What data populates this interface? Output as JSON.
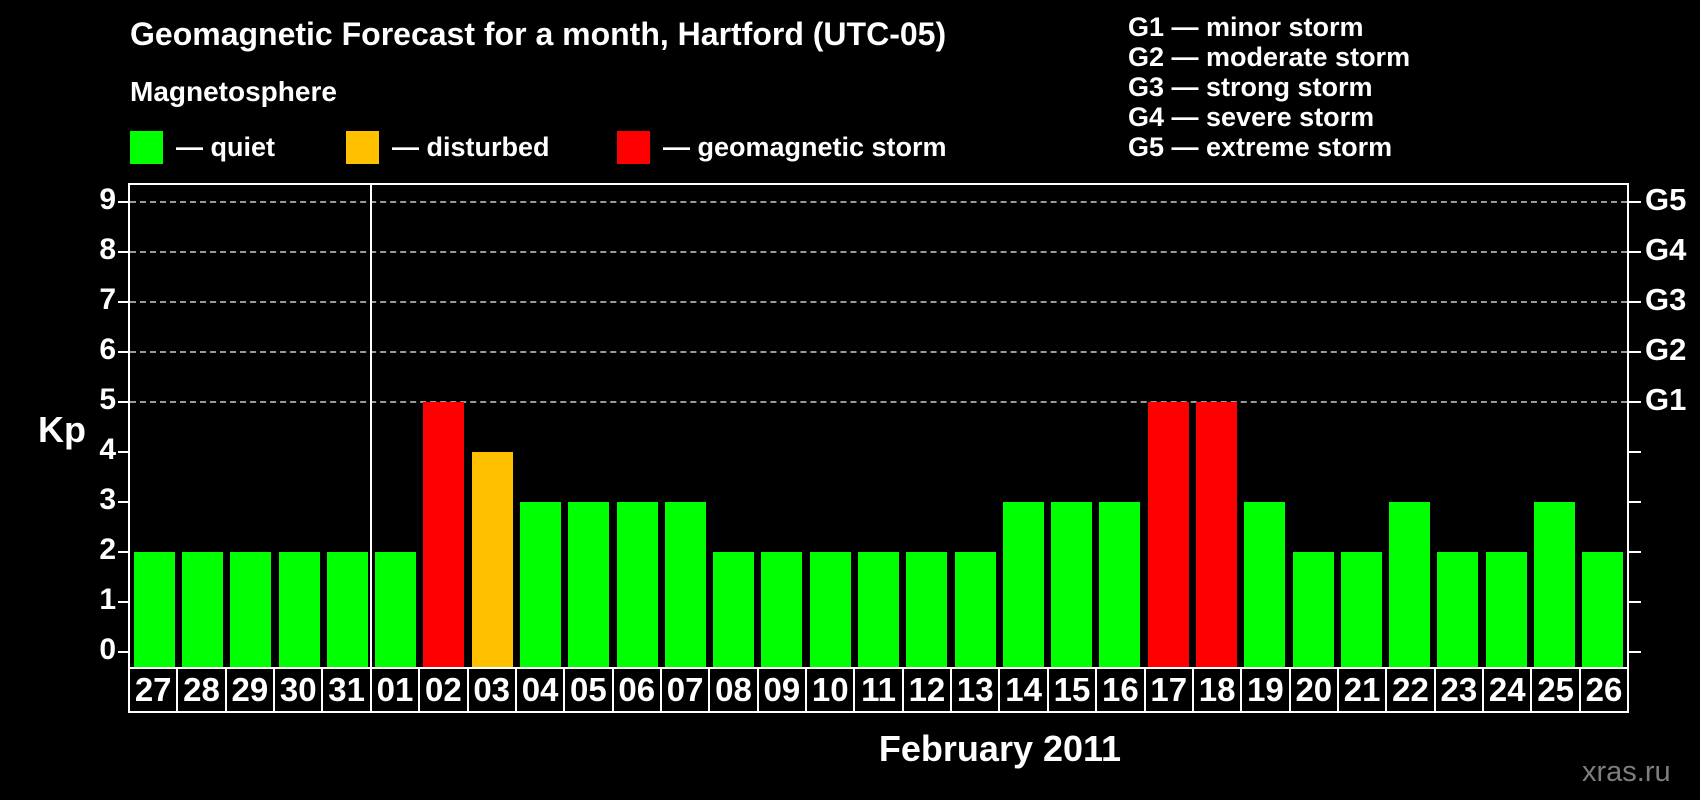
{
  "header": {
    "title": "Geomagnetic Forecast for a month, Hartford (UTC-05)"
  },
  "legend": {
    "title": "Magnetosphere",
    "items": [
      {
        "key": "quiet",
        "label": "— quiet"
      },
      {
        "key": "disturbed",
        "label": "— disturbed"
      },
      {
        "key": "storm",
        "label": "— geomagnetic storm"
      }
    ]
  },
  "g_scale": {
    "items": [
      {
        "text": "G1 — minor storm"
      },
      {
        "text": "G2 — moderate storm"
      },
      {
        "text": "G3 — strong storm"
      },
      {
        "text": "G4 — severe storm"
      },
      {
        "text": "G5 — extreme storm"
      }
    ]
  },
  "axes": {
    "y_label": "Kp",
    "x_label": "February 2011",
    "y_ticks": [
      0,
      1,
      2,
      3,
      4,
      5,
      6,
      7,
      8,
      9
    ],
    "right_labels": [
      {
        "value": 5,
        "label": "G1"
      },
      {
        "value": 6,
        "label": "G2"
      },
      {
        "value": 7,
        "label": "G3"
      },
      {
        "value": 8,
        "label": "G4"
      },
      {
        "value": 9,
        "label": "G5"
      }
    ]
  },
  "footer": {
    "watermark": "xras.ru"
  },
  "colors": {
    "quiet": "#00FF00",
    "disturbed": "#FFC000",
    "storm": "#FF0000",
    "background": "#000000",
    "grid": "#9A9A9A",
    "text": "#FFFFFF",
    "watermark": "#7D7D7D"
  },
  "chart_data": {
    "type": "bar",
    "title": "Geomagnetic Forecast for a month, Hartford (UTC-05)",
    "xlabel": "February 2011",
    "ylabel": "Kp",
    "ylim": [
      0,
      9
    ],
    "gridlines": [
      5,
      6,
      7,
      8,
      9
    ],
    "legend_position": "top",
    "categories": [
      "27",
      "28",
      "29",
      "30",
      "31",
      "01",
      "02",
      "03",
      "04",
      "05",
      "06",
      "07",
      "08",
      "09",
      "10",
      "11",
      "12",
      "13",
      "14",
      "15",
      "16",
      "17",
      "18",
      "19",
      "20",
      "21",
      "22",
      "23",
      "24",
      "25",
      "26"
    ],
    "values": [
      2,
      2,
      2,
      2,
      2,
      2,
      5,
      4,
      3,
      3,
      3,
      3,
      2,
      2,
      2,
      2,
      2,
      2,
      3,
      3,
      3,
      5,
      5,
      3,
      2,
      2,
      3,
      2,
      2,
      3,
      2
    ],
    "statuses": [
      "quiet",
      "quiet",
      "quiet",
      "quiet",
      "quiet",
      "quiet",
      "storm",
      "disturbed",
      "quiet",
      "quiet",
      "quiet",
      "quiet",
      "quiet",
      "quiet",
      "quiet",
      "quiet",
      "quiet",
      "quiet",
      "quiet",
      "quiet",
      "quiet",
      "storm",
      "storm",
      "quiet",
      "quiet",
      "quiet",
      "quiet",
      "quiet",
      "quiet",
      "quiet",
      "quiet"
    ],
    "month_separator_index": 5
  }
}
